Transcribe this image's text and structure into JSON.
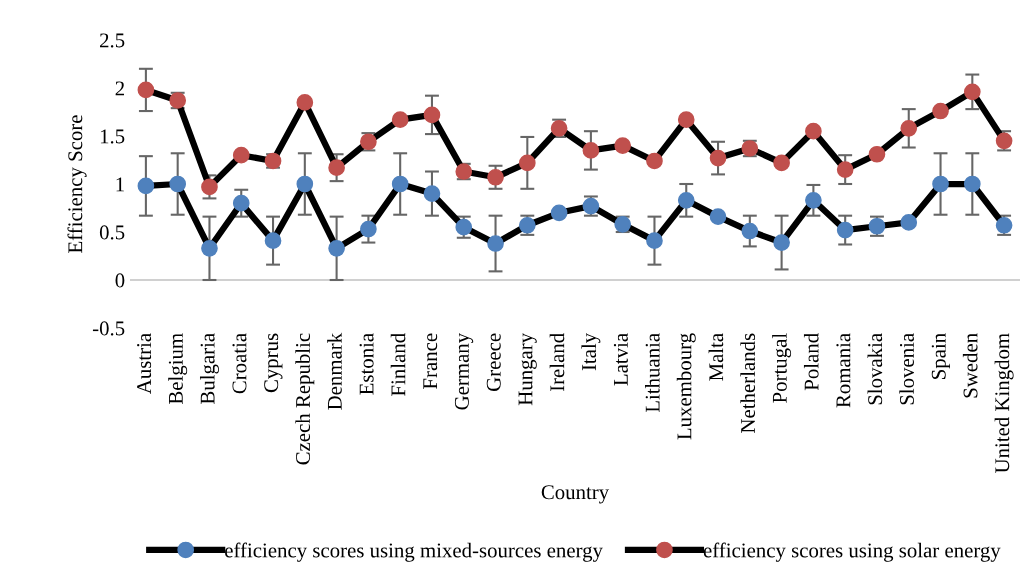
{
  "chart_data": {
    "type": "line",
    "xlabel": "Country",
    "ylabel": "Efficiency Score",
    "categories": [
      "Austria",
      "Belgium",
      "Bulgaria",
      "Croatia",
      "Cyprus",
      "Czech Republic",
      "Denmark",
      "Estonia",
      "Finland",
      "France",
      "Germany",
      "Greece",
      "Hungary",
      "Ireland",
      "Italy",
      "Latvia",
      "Lithuania",
      "Luxembourg",
      "Malta",
      "Netherlands",
      "Portugal",
      "Poland",
      "Romania",
      "Slovakia",
      "Slovenia",
      "Spain",
      "Sweden",
      "United Kingdom"
    ],
    "series": [
      {
        "name": "efficiency scores using mixed-sources energy",
        "color": "#4f81bd",
        "values": [
          0.98,
          1.0,
          0.33,
          0.8,
          0.41,
          1.0,
          0.33,
          0.53,
          1.0,
          0.9,
          0.55,
          0.38,
          0.57,
          0.7,
          0.77,
          0.58,
          0.41,
          0.83,
          0.66,
          0.51,
          0.39,
          0.83,
          0.52,
          0.56,
          0.6,
          1.0,
          1.0,
          0.57
        ],
        "errors": [
          0.31,
          0.32,
          0.33,
          0.14,
          0.25,
          0.32,
          0.33,
          0.14,
          0.32,
          0.23,
          0.11,
          0.29,
          0.1,
          null,
          0.1,
          0.08,
          0.25,
          0.17,
          null,
          0.16,
          0.28,
          0.16,
          0.15,
          0.1,
          null,
          0.32,
          0.32,
          0.1
        ]
      },
      {
        "name": "efficiency scores using solar energy",
        "color": "#c0504d",
        "values": [
          1.98,
          1.87,
          0.97,
          1.3,
          1.24,
          1.85,
          1.17,
          1.44,
          1.67,
          1.72,
          1.13,
          1.07,
          1.22,
          1.58,
          1.35,
          1.4,
          1.24,
          1.67,
          1.27,
          1.37,
          1.22,
          1.55,
          1.15,
          1.31,
          1.58,
          1.76,
          1.96,
          1.45
        ],
        "errors": [
          0.22,
          0.08,
          0.12,
          null,
          0.07,
          null,
          0.14,
          0.09,
          null,
          0.2,
          0.08,
          0.12,
          0.27,
          0.09,
          0.2,
          null,
          null,
          null,
          0.17,
          0.08,
          null,
          null,
          0.15,
          null,
          0.2,
          null,
          0.18,
          0.1
        ]
      }
    ],
    "ylim": [
      -0.5,
      2.5
    ],
    "yticks": [
      -0.5,
      0,
      0.5,
      1,
      1.5,
      2,
      2.5
    ],
    "grid": false,
    "legend": "bottom",
    "marker": "circle",
    "line_style": "solid"
  }
}
